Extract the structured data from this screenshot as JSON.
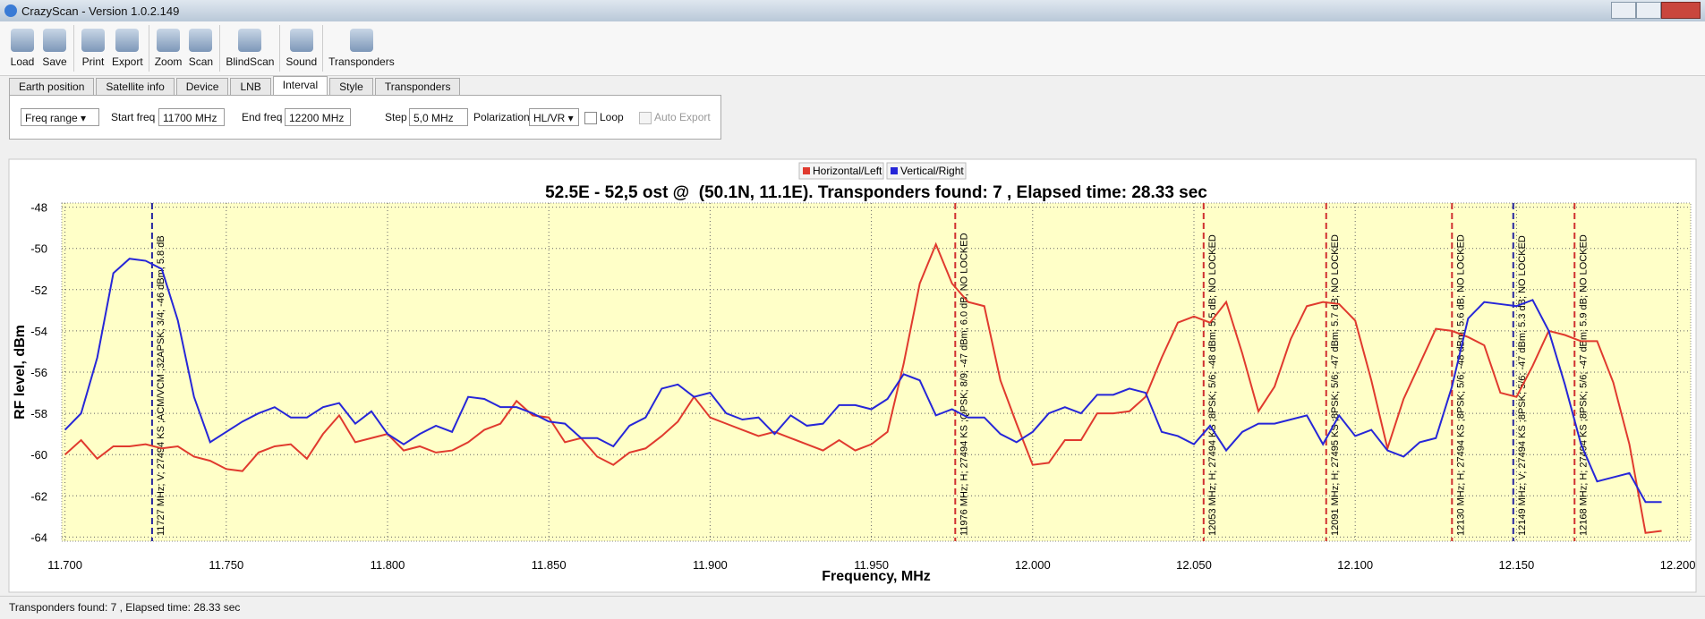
{
  "window": {
    "title": "CrazyScan - Version 1.0.2.149"
  },
  "toolbar": [
    "Load",
    "Save",
    "Print",
    "Export",
    "Zoom",
    "Scan",
    "BlindScan",
    "Sound",
    "Transponders"
  ],
  "tabs": [
    "Earth position",
    "Satellite info",
    "Device",
    "LNB",
    "Interval",
    "Style",
    "Transponders"
  ],
  "active_tab": 4,
  "interval": {
    "mode": "Freq range",
    "start_label": "Start freq",
    "start_value": "11700 MHz",
    "end_label": "End freq",
    "end_value": "12200 MHz",
    "step_label": "Step",
    "step_value": "5,0 MHz",
    "pol_label": "Polarization",
    "pol_value": "HL/VR",
    "loop": "Loop",
    "auto_export": "Auto Export"
  },
  "chart_data": {
    "type": "line",
    "title": "52.5E - 52,5 ost @  (50.1N, 11.1E). Transponders found: 7 , Elapsed time: 28.33 sec",
    "x_label": "Frequency, MHz",
    "y_label": "RF level, dBm",
    "xlim": [
      11699,
      12204
    ],
    "ylim": [
      -64.2,
      -47.8
    ],
    "xticks": [
      {
        "value": 11700,
        "label": "11.700"
      },
      {
        "value": 11750,
        "label": "11.750"
      },
      {
        "value": 11800,
        "label": "11.800"
      },
      {
        "value": 11850,
        "label": "11.850"
      },
      {
        "value": 11900,
        "label": "11.900"
      },
      {
        "value": 11950,
        "label": "11.950"
      },
      {
        "value": 12000,
        "label": "12.000"
      },
      {
        "value": 12050,
        "label": "12.050"
      },
      {
        "value": 12100,
        "label": "12.100"
      },
      {
        "value": 12150,
        "label": "12.150"
      },
      {
        "value": 12200,
        "label": "12.200"
      }
    ],
    "yticks": [
      -48,
      -50,
      -52,
      -54,
      -56,
      -58,
      -60,
      -62,
      -64
    ],
    "grid": true,
    "x": [
      11700,
      11705,
      11710,
      11715,
      11720,
      11725,
      11730,
      11735,
      11740,
      11745,
      11750,
      11755,
      11760,
      11765,
      11770,
      11775,
      11780,
      11785,
      11790,
      11795,
      11800,
      11805,
      11810,
      11815,
      11820,
      11825,
      11830,
      11835,
      11840,
      11845,
      11850,
      11855,
      11860,
      11865,
      11870,
      11875,
      11880,
      11885,
      11890,
      11895,
      11900,
      11905,
      11910,
      11915,
      11920,
      11925,
      11930,
      11935,
      11940,
      11945,
      11950,
      11955,
      11960,
      11965,
      11970,
      11975,
      11980,
      11985,
      11990,
      11995,
      12000,
      12005,
      12010,
      12015,
      12020,
      12025,
      12030,
      12035,
      12040,
      12045,
      12050,
      12055,
      12060,
      12065,
      12070,
      12075,
      12080,
      12085,
      12090,
      12095,
      12100,
      12105,
      12110,
      12115,
      12120,
      12125,
      12130,
      12135,
      12140,
      12145,
      12150,
      12155,
      12160,
      12165,
      12170,
      12175,
      12180,
      12185,
      12190,
      12195
    ],
    "series": [
      {
        "name": "Horizontal/Left",
        "color": "#e03a2e",
        "values": [
          -60.0,
          -59.3,
          -60.2,
          -59.6,
          -59.6,
          -59.5,
          -59.7,
          -59.6,
          -60.1,
          -60.3,
          -60.7,
          -60.8,
          -59.9,
          -59.6,
          -59.5,
          -60.2,
          -59.0,
          -58.1,
          -59.4,
          -59.2,
          -59.0,
          -59.8,
          -59.6,
          -59.9,
          -59.8,
          -59.4,
          -58.8,
          -58.5,
          -57.4,
          -58.1,
          -58.2,
          -59.4,
          -59.2,
          -60.1,
          -60.5,
          -59.9,
          -59.7,
          -59.1,
          -58.4,
          -57.2,
          -58.2,
          -58.5,
          -58.8,
          -59.1,
          -58.9,
          -59.2,
          -59.5,
          -59.8,
          -59.3,
          -59.8,
          -59.5,
          -58.9,
          -55.6,
          -51.7,
          -49.8,
          -51.7,
          -52.6,
          -52.8,
          -56.4,
          -58.5,
          -60.5,
          -60.4,
          -59.3,
          -59.3,
          -58.0,
          -58.0,
          -57.9,
          -57.2,
          -55.3,
          -53.6,
          -53.3,
          -53.6,
          -52.6,
          -55.1,
          -57.9,
          -56.7,
          -54.4,
          -52.8,
          -52.6,
          -52.7,
          -53.5,
          -56.4,
          -59.7,
          -57.3,
          -55.6,
          -53.9,
          -54.0,
          -54.3,
          -54.7,
          -57.0,
          -57.2,
          -55.7,
          -54.0,
          -54.2,
          -54.5,
          -54.5,
          -56.5,
          -59.5,
          -63.8,
          -63.7
        ]
      },
      {
        "name": "Vertical/Right",
        "color": "#2626d8",
        "values": [
          -58.8,
          -58.0,
          -55.3,
          -51.2,
          -50.5,
          -50.6,
          -51.0,
          -53.5,
          -57.2,
          -59.4,
          -58.9,
          -58.4,
          -58.0,
          -57.7,
          -58.2,
          -58.2,
          -57.7,
          -57.5,
          -58.5,
          -57.9,
          -59.0,
          -59.5,
          -59.0,
          -58.6,
          -58.9,
          -57.2,
          -57.3,
          -57.7,
          -57.7,
          -58.0,
          -58.4,
          -58.5,
          -59.2,
          -59.2,
          -59.6,
          -58.6,
          -58.2,
          -56.8,
          -56.6,
          -57.2,
          -57.0,
          -58.0,
          -58.3,
          -58.2,
          -59.0,
          -58.1,
          -58.6,
          -58.5,
          -57.6,
          -57.6,
          -57.8,
          -57.3,
          -56.1,
          -56.4,
          -58.1,
          -57.8,
          -58.2,
          -58.2,
          -59.0,
          -59.4,
          -58.9,
          -58.0,
          -57.7,
          -58.0,
          -57.1,
          -57.1,
          -56.8,
          -57.0,
          -58.9,
          -59.1,
          -59.5,
          -58.6,
          -59.8,
          -58.9,
          -58.5,
          -58.5,
          -58.3,
          -58.1,
          -59.5,
          -58.1,
          -59.1,
          -58.8,
          -59.8,
          -60.1,
          -59.4,
          -59.2,
          -56.7,
          -53.4,
          -52.6,
          -52.7,
          -52.8,
          -52.5,
          -54.0,
          -56.6,
          -59.5,
          -61.3,
          -61.1,
          -60.9,
          -62.3,
          -62.3
        ]
      }
    ],
    "markers": [
      {
        "x": 11727,
        "color": "#2626a0",
        "label": "11727 MHz; V; 27494 KS ;ACM/VCM ;32APSK; 3/4; -46 dBm; 5.8 dB"
      },
      {
        "x": 11976,
        "color": "#d03030",
        "label": "11976 MHz; H; 27494 KS ;QPSK; 8/9; -47 dBm; 6.0 dB; NO LOCKED"
      },
      {
        "x": 12053,
        "color": "#d03030",
        "label": "12053 MHz; H; 27494 KS ;8PSK; 5/6; -48 dBm; 5.5 dB; NO LOCKED"
      },
      {
        "x": 12091,
        "color": "#d03030",
        "label": "12091 MHz; H; 27495 KS ;8PSK; 5/6; -47 dBm; 5.7 dB; NO LOCKED"
      },
      {
        "x": 12130,
        "color": "#d03030",
        "label": "12130 MHz; H; 27494 KS ;8PSK; 5/6; -48 dBm; 5.6 dB; NO LOCKED"
      },
      {
        "x": 12149,
        "color": "#2626a0",
        "label": "12149 MHz; V; 27494 KS ;8PSK; 5/6; -47 dBm; 5.3 dB; NO LOCKED"
      },
      {
        "x": 12168,
        "color": "#d03030",
        "label": "12168 MHz; H; 27494 KS ;8PSK; 5/6; -47 dBm; 5.9 dB; NO LOCKED"
      }
    ]
  },
  "status": "Transponders found: 7 , Elapsed time: 28.33 sec"
}
